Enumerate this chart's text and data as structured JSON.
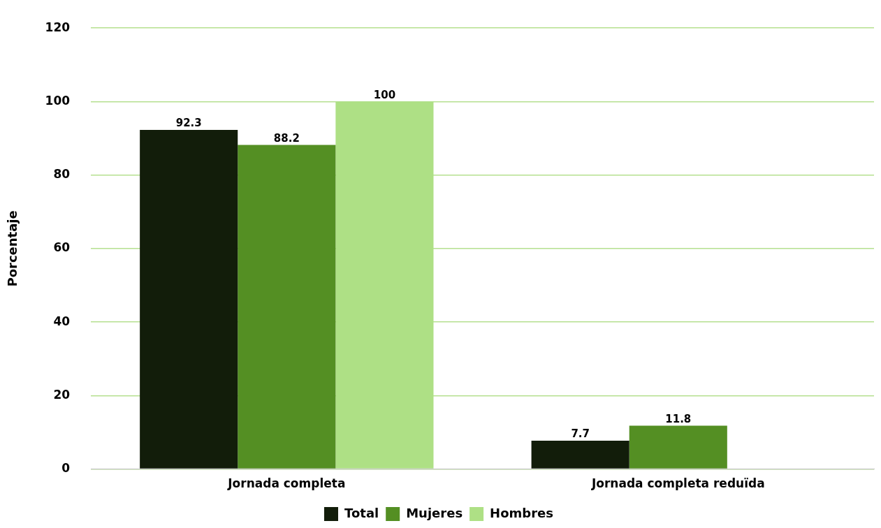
{
  "chart_data": {
    "type": "bar",
    "ylabel": "Porcentaje",
    "categories": [
      "Jornada completa",
      "Jornada completa reduïda"
    ],
    "series": [
      {
        "name": "Total",
        "color": "#121d0a",
        "values": [
          92.3,
          7.7
        ]
      },
      {
        "name": "Mujeres",
        "color": "#548f23",
        "values": [
          88.2,
          11.8
        ]
      },
      {
        "name": "Hombres",
        "color": "#aee085",
        "values": [
          100,
          null
        ]
      }
    ],
    "ylim": [
      0,
      120
    ],
    "yticks": [
      0,
      20,
      40,
      60,
      80,
      100,
      120
    ],
    "grid": "y",
    "legend": "bottom",
    "data_labels": true
  }
}
